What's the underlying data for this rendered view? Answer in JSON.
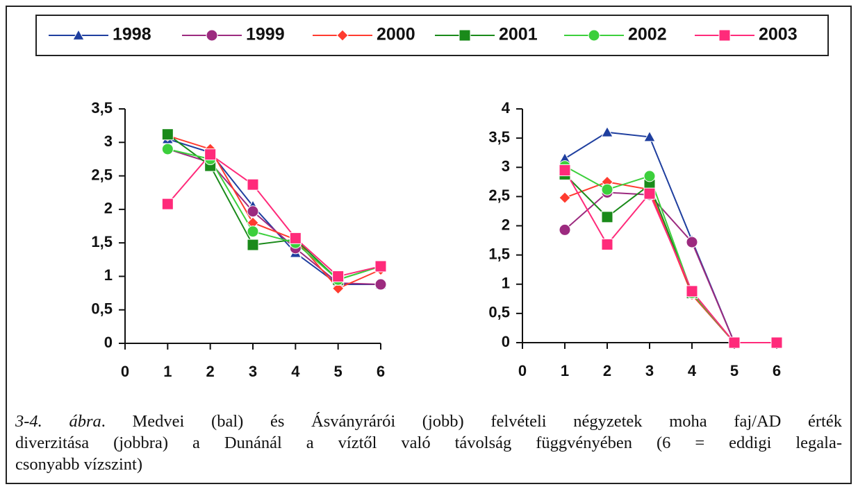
{
  "chart_data": [
    {
      "type": "line",
      "x": [
        1,
        2,
        3,
        4,
        5,
        6
      ],
      "xlim": [
        0,
        6
      ],
      "xticks": [
        0,
        1,
        2,
        3,
        4,
        5,
        6
      ],
      "ylim": [
        0,
        3.5
      ],
      "yticks": [
        0,
        {
          "value": 0.5,
          "label": "0,5"
        },
        1,
        {
          "value": 1.5,
          "label": "1,5"
        },
        2,
        {
          "value": 2.5,
          "label": "2,5"
        },
        3,
        {
          "value": 3.5,
          "label": "3,5"
        }
      ],
      "series": [
        {
          "name": "1998",
          "color": "#1f3f9f",
          "marker": "triangle",
          "values": [
            3.05,
            2.85,
            2.05,
            1.35,
            0.88,
            0.88
          ]
        },
        {
          "name": "1999",
          "color": "#9c2a7f",
          "marker": "circle",
          "values": [
            2.9,
            2.7,
            1.97,
            1.42,
            0.9,
            0.88
          ]
        },
        {
          "name": "2000",
          "color": "#ff3b2f",
          "marker": "diamond",
          "values": [
            3.1,
            2.9,
            1.8,
            1.55,
            0.82,
            1.1
          ]
        },
        {
          "name": "2001",
          "color": "#1a8a1a",
          "marker": "square",
          "values": [
            3.12,
            2.65,
            1.47,
            1.55,
            0.95,
            1.15
          ]
        },
        {
          "name": "2002",
          "color": "#3ccf3c",
          "marker": "circle",
          "values": [
            2.9,
            2.75,
            1.67,
            1.5,
            0.95,
            1.15
          ]
        },
        {
          "name": "2003",
          "color": "#ff2a7a",
          "marker": "square",
          "values": [
            2.08,
            2.82,
            2.37,
            1.57,
            1.0,
            1.15
          ]
        }
      ]
    },
    {
      "type": "line",
      "x": [
        1,
        2,
        3,
        4,
        5,
        6
      ],
      "xlim": [
        0,
        6
      ],
      "xticks": [
        0,
        1,
        2,
        3,
        4,
        5,
        6
      ],
      "ylim": [
        0,
        4
      ],
      "yticks": [
        0,
        {
          "value": 0.5,
          "label": "0,5"
        },
        1,
        {
          "value": 1.5,
          "label": "1,5"
        },
        2,
        {
          "value": 2.5,
          "label": "2,5"
        },
        3,
        {
          "value": 3.5,
          "label": "3,5"
        },
        4
      ],
      "series": [
        {
          "name": "1998",
          "color": "#1f3f9f",
          "marker": "triangle",
          "values": [
            3.15,
            3.6,
            3.52,
            1.75,
            0,
            0
          ]
        },
        {
          "name": "1999",
          "color": "#9c2a7f",
          "marker": "circle",
          "values": [
            1.93,
            2.57,
            2.53,
            1.72,
            0,
            0
          ]
        },
        {
          "name": "2000",
          "color": "#ff3b2f",
          "marker": "diamond",
          "values": [
            2.48,
            2.75,
            2.62,
            0.82,
            0,
            0
          ]
        },
        {
          "name": "2001",
          "color": "#1a8a1a",
          "marker": "square",
          "values": [
            2.88,
            2.15,
            2.7,
            0.85,
            0,
            0
          ]
        },
        {
          "name": "2002",
          "color": "#3ccf3c",
          "marker": "circle",
          "values": [
            3.02,
            2.62,
            2.85,
            0.85,
            0,
            0
          ]
        },
        {
          "name": "2003",
          "color": "#ff2a7a",
          "marker": "square",
          "values": [
            2.95,
            1.68,
            2.55,
            0.88,
            0,
            0
          ]
        }
      ]
    }
  ],
  "caption": {
    "prefix": "3-4. ábra",
    "lines": [
      ". Medvei (bal) és Ásványrárói (jobb) felvételi négyzetek moha faj/AD érték",
      "diverzitása (jobbra) a Dunánál a víztől való távolság függvényében (6 = eddigi legala-",
      "csonyabb vízszint)"
    ]
  }
}
